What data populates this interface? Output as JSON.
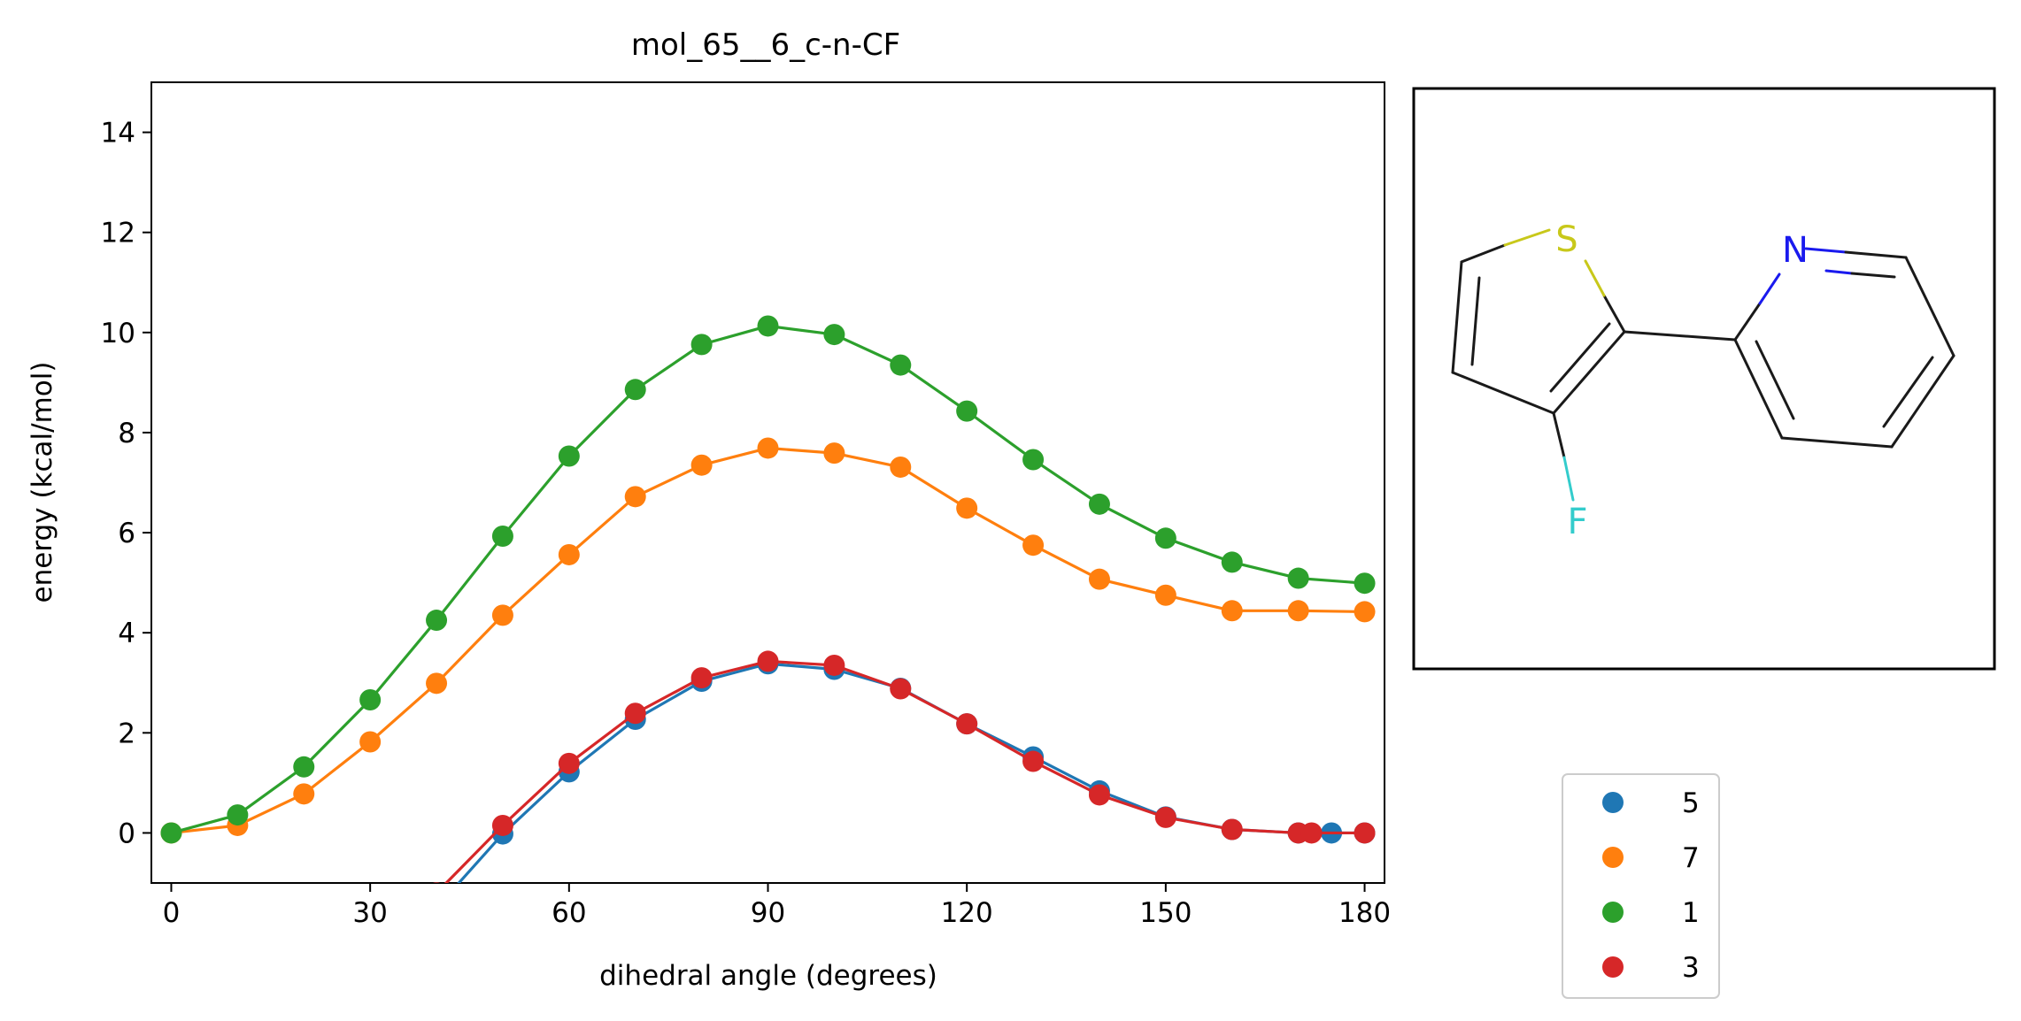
{
  "chart_data": {
    "type": "line",
    "title": "mol_65__6_c-n-CF",
    "xlabel": "dihedral angle (degrees)",
    "ylabel": "energy (kcal/mol)",
    "xlim": [
      -3,
      183
    ],
    "ylim": [
      -1,
      15
    ],
    "xticks": [
      0,
      30,
      60,
      90,
      120,
      150,
      180
    ],
    "yticks": [
      0,
      2,
      4,
      6,
      8,
      10,
      12,
      14
    ],
    "grid": false,
    "legend_position": "outside-right-bottom",
    "series": [
      {
        "name": "5",
        "color": "#1f77b4",
        "x": [
          40,
          50,
          60,
          70,
          80,
          90,
          100,
          110,
          120,
          130,
          140,
          150,
          160,
          170,
          175,
          180
        ],
        "y": [
          -1.5,
          -0.02,
          1.22,
          2.27,
          3.03,
          3.38,
          3.27,
          2.89,
          2.18,
          1.52,
          0.84,
          0.32,
          0.07,
          0.0,
          0.0,
          0.0
        ]
      },
      {
        "name": "7",
        "color": "#ff7f0e",
        "x": [
          0,
          10,
          20,
          30,
          40,
          50,
          60,
          70,
          80,
          90,
          100,
          110,
          120,
          130,
          140,
          150,
          160,
          170,
          180
        ],
        "y": [
          0.0,
          0.15,
          0.78,
          1.82,
          2.99,
          4.35,
          5.56,
          6.72,
          7.35,
          7.69,
          7.59,
          7.31,
          6.49,
          5.75,
          5.07,
          4.75,
          4.44,
          4.44,
          4.42
        ]
      },
      {
        "name": "1",
        "color": "#2ca02c",
        "x": [
          0,
          10,
          20,
          30,
          40,
          50,
          60,
          70,
          80,
          90,
          100,
          110,
          120,
          130,
          140,
          150,
          160,
          170,
          180
        ],
        "y": [
          0.0,
          0.36,
          1.32,
          2.66,
          4.25,
          5.93,
          7.53,
          8.86,
          9.76,
          10.13,
          9.96,
          9.35,
          8.43,
          7.46,
          6.57,
          5.89,
          5.41,
          5.09,
          4.99
        ]
      },
      {
        "name": "3",
        "color": "#d62728",
        "x": [
          40,
          50,
          60,
          70,
          80,
          90,
          100,
          110,
          120,
          130,
          140,
          150,
          160,
          170,
          172,
          180
        ],
        "y": [
          -1.2,
          0.15,
          1.39,
          2.39,
          3.1,
          3.43,
          3.35,
          2.88,
          2.18,
          1.43,
          0.76,
          0.31,
          0.07,
          0.0,
          0.0,
          0.0
        ]
      }
    ],
    "legend_order": [
      "5",
      "7",
      "1",
      "3"
    ]
  },
  "molecule": {
    "labels": {
      "S": "S",
      "N": "N",
      "F": "F"
    },
    "colors": {
      "bond": "#1a1a1a",
      "S": "#c8c81a",
      "N": "#1a1aee",
      "F": "#33cccc"
    }
  }
}
